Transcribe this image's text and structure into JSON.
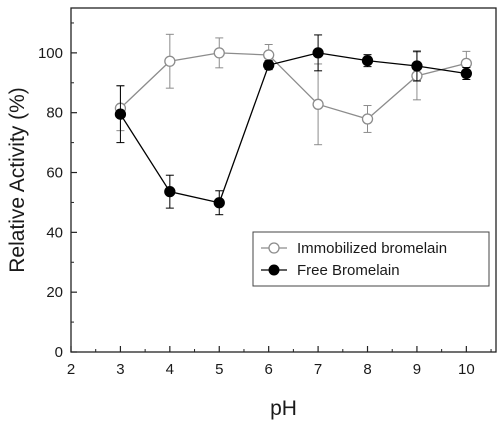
{
  "chart_data": {
    "type": "line",
    "xlabel": "pH",
    "ylabel": "Relative Activity (%)",
    "xlim": [
      2,
      10.6
    ],
    "ylim": [
      0,
      115
    ],
    "x_ticks": [
      2,
      3,
      4,
      5,
      6,
      7,
      8,
      9,
      10
    ],
    "y_ticks": [
      0,
      20,
      40,
      60,
      80,
      100
    ],
    "legend_position": "lower-right",
    "series": [
      {
        "name": "Immobilized bromelain",
        "marker": "open-circle",
        "color": "#8c8c8c",
        "x": [
          3,
          4,
          5,
          6,
          7,
          8,
          9,
          10
        ],
        "y": [
          81.5,
          97.2,
          100,
          99.3,
          82.8,
          77.9,
          92.3,
          96.5
        ],
        "err": [
          7.5,
          9,
          5,
          3.5,
          13.5,
          4.5,
          8,
          4
        ]
      },
      {
        "name": "Free Bromelain",
        "marker": "filled-circle",
        "color": "#000000",
        "x": [
          3,
          4,
          5,
          6,
          7,
          8,
          9,
          10
        ],
        "y": [
          79.5,
          53.6,
          49.9,
          95.9,
          100,
          97.4,
          95.6,
          93.1
        ],
        "err": [
          9.5,
          5.5,
          4,
          1.5,
          6,
          2,
          5,
          2
        ]
      }
    ]
  }
}
